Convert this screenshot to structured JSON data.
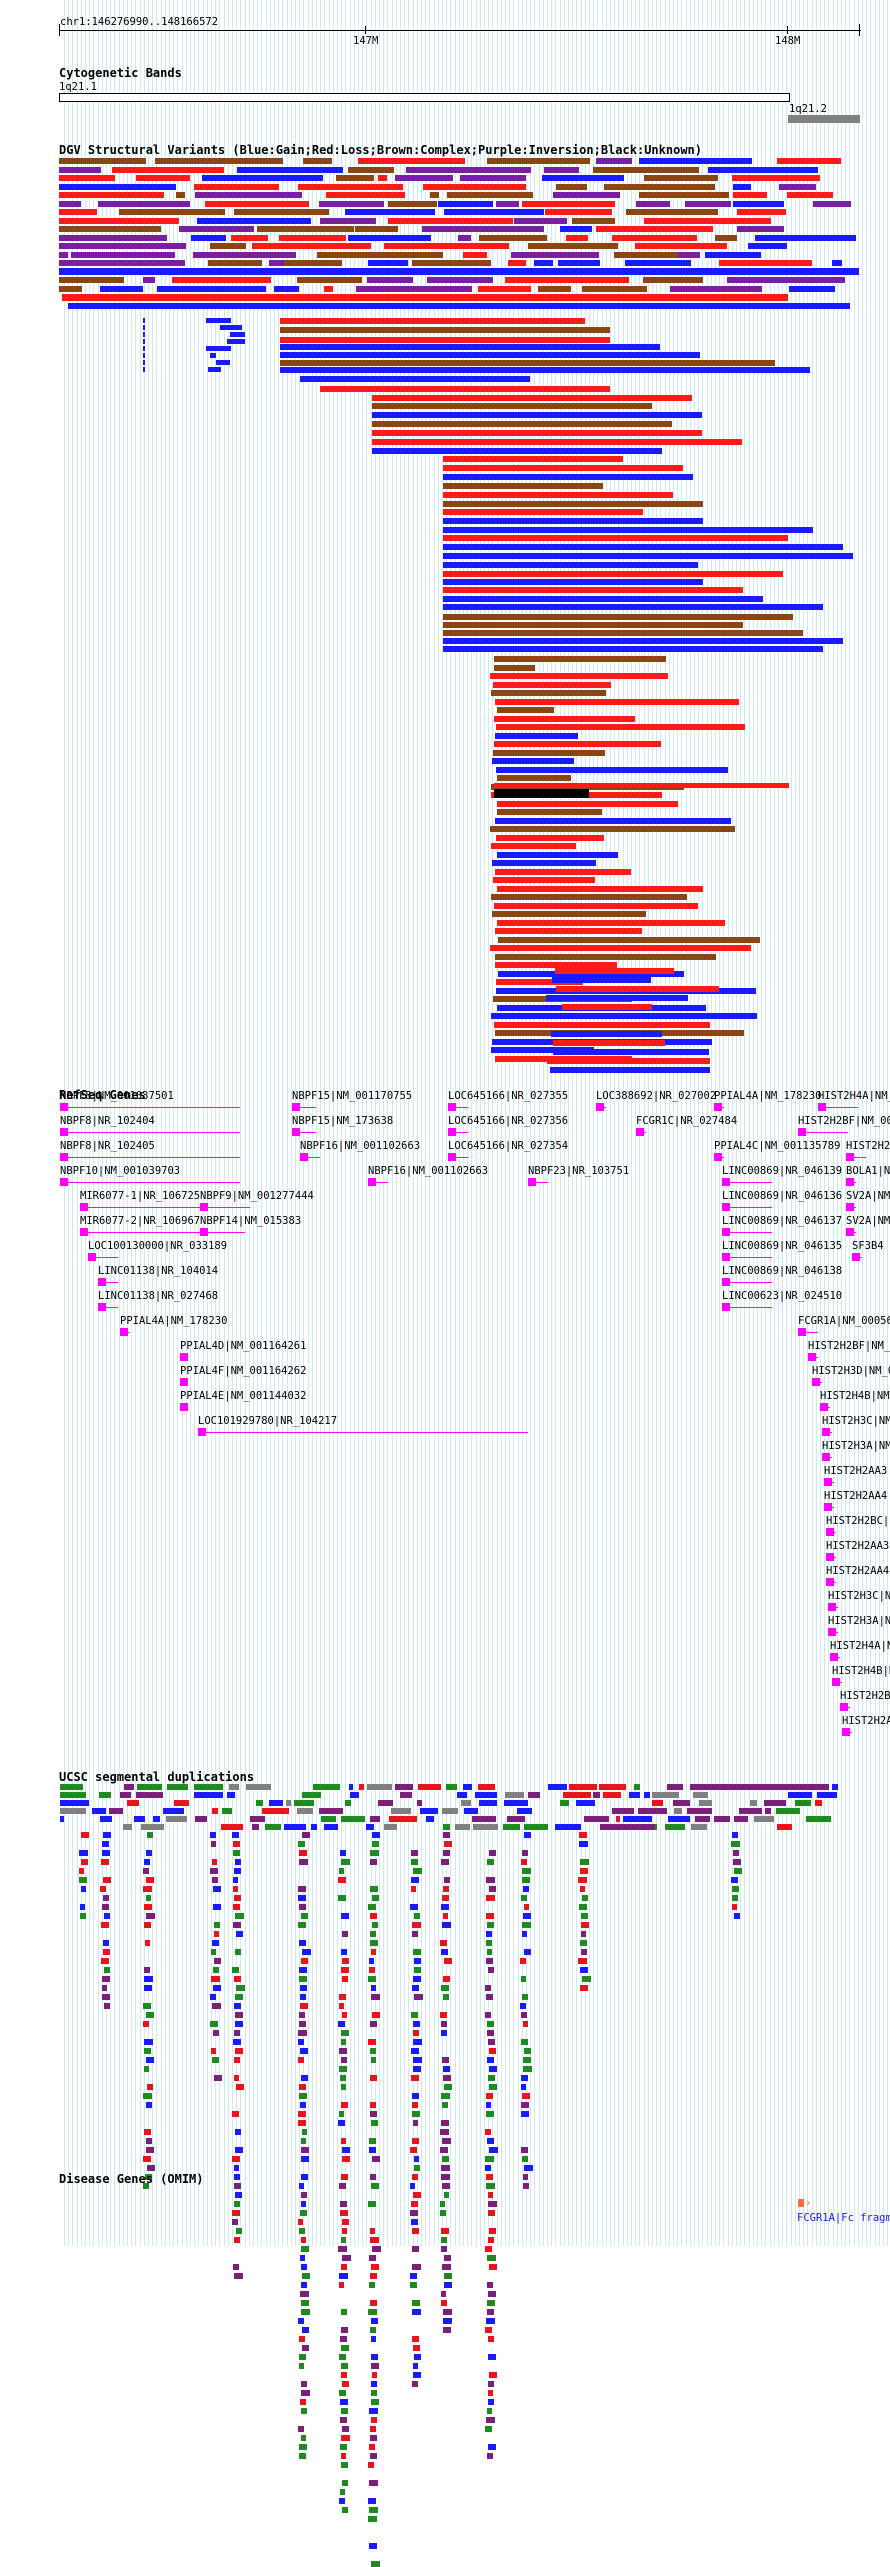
{
  "ruler": {
    "position": "chr1:146276990..148166572",
    "tick_labels": [
      "147M",
      "148M"
    ]
  },
  "cytoband": {
    "title": "Cytogenetic Bands",
    "bands": [
      "1q21.1",
      "1q21.2"
    ]
  },
  "dgv": {
    "title": "DGV Structural Variants (Blue:Gain;Red:Loss;Brown:Complex;Purple:Inversion;Black:Unknown)",
    "colors": {
      "gain": "#1a1aff",
      "loss": "#ff1a1a",
      "complex": "#8b4513",
      "inversion": "#7a1fa2",
      "unknown": "#000000"
    }
  },
  "refseq": {
    "title": "RefSeq Genes",
    "genes": [
      "NBPF8|NM_001037501",
      "NBPF8|NR_102404",
      "NBPF8|NR_102405",
      "NBPF10|NM_001039703",
      "MIR6077-1|NR_106725",
      "MIR6077-2|NR_106967",
      "LOC100130000|NR_033189",
      "LINC01138|NR_104014",
      "LINC01138|NR_027468",
      "PPIAL4A|NM_178230",
      "PPIAL4D|NM_001164261",
      "PPIAL4F|NM_001164262",
      "PPIAL4E|NM_001144032",
      "LOC101929780|NR_104217",
      "NBPF9|NM_001277444",
      "NBPF14|NM_015383",
      "NBPF15|NM_001170755",
      "NBPF15|NM_173638",
      "NBPF16|NM_001102663",
      "NBPF16|NM_001102663",
      "LOC645166|NR_027355",
      "LOC645166|NR_027356",
      "LOC645166|NR_027354",
      "NBPF23|NR_103751",
      "LOC388692|NR_027002",
      "FCGR1C|NR_027484",
      "PPIAL4A|NM_178230",
      "PPIAL4C|NM_001135789",
      "LINC00869|NR_046139",
      "LINC00869|NR_046136",
      "LINC00869|NR_046137",
      "LINC00869|NR_046135",
      "LINC00869|NR_046138",
      "LINC00623|NR_024510",
      "HIST2H4A|NM_",
      "HIST2H2BF|NM_00",
      "HIST2H2A",
      "BOLA1|N",
      "SV2A|NM",
      "SV2A|NM",
      "SF3B4",
      "FCGR1A|NM_00056",
      "HIST2H2BF|NM_0",
      "HIST2H3D|NM_0",
      "HIST2H4B|NM",
      "HIST2H3C|NM",
      "HIST2H3A|NM",
      "HIST2H2AA3|",
      "HIST2H2AA4|",
      "HIST2H2BC|N",
      "HIST2H2AA3|",
      "HIST2H2AA4|",
      "HIST2H3C|NM",
      "HIST2H3A|NM",
      "HIST2H4A|NM",
      "HIST2H4B|NM",
      "HIST2H2BE",
      "HIST2H2A"
    ]
  },
  "segdup": {
    "title": "UCSC segmental duplications",
    "colors": {
      "purple": "#7a1f7a",
      "red": "#e8141c",
      "blue": "#1a1aff",
      "green": "#1f8a1f",
      "gray": "#808080"
    }
  },
  "omim": {
    "title": "Disease Genes (OMIM)",
    "gene_label": "FCGR1A|Fc fragme"
  }
}
